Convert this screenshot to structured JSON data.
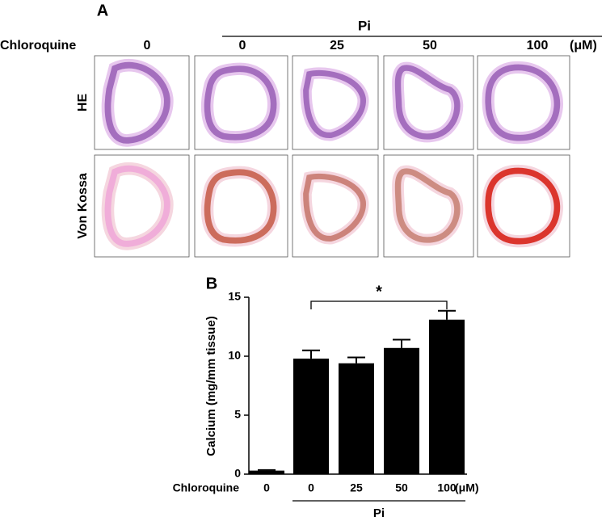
{
  "panel_a": {
    "label": "A",
    "group_label": "Pi",
    "row_label": "Chloroquine",
    "columns": [
      "0",
      "0",
      "25",
      "50",
      "100"
    ],
    "unit": "(μM)",
    "rows": [
      "HE",
      "Von Kossa"
    ]
  },
  "chart_data": {
    "type": "bar",
    "panel_label": "B",
    "y_label": "Calcium (mg/mm tissue)",
    "x_row_label": "Chloroquine",
    "x_unit": "(μM)",
    "group_label": "Pi",
    "annotation": "*",
    "categories": [
      "0",
      "0",
      "25",
      "50",
      "100"
    ],
    "values": [
      0.3,
      9.8,
      9.4,
      10.7,
      13.1
    ],
    "errors": [
      0.05,
      0.7,
      0.5,
      0.7,
      0.75
    ],
    "color": "#000000",
    "ylim": [
      0,
      15
    ],
    "yticks": [
      0,
      5,
      10,
      15
    ]
  }
}
